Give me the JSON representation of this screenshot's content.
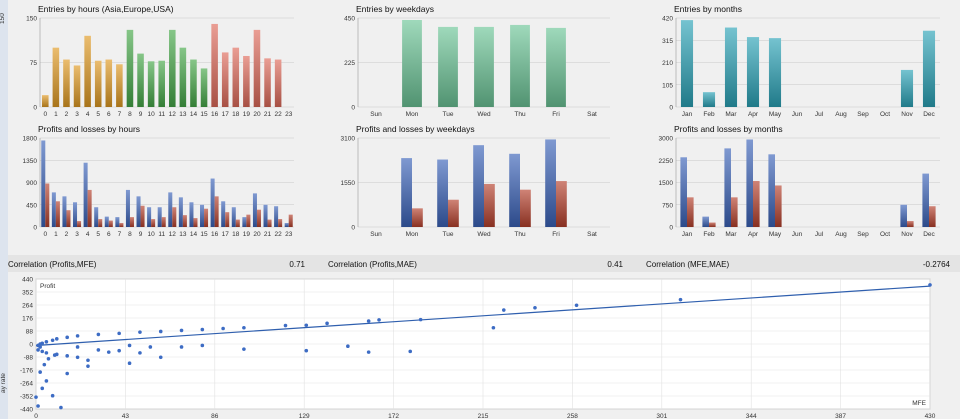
{
  "left_strip": {
    "top_text": "150",
    "side_text": "ay rate"
  },
  "charts": [
    {
      "id": "entries-hours",
      "title": "Entries by hours (Asia,Europe,USA)",
      "type": "bar",
      "categories": [
        "0",
        "1",
        "2",
        "3",
        "4",
        "5",
        "6",
        "7",
        "8",
        "9",
        "10",
        "11",
        "12",
        "13",
        "14",
        "15",
        "16",
        "17",
        "18",
        "19",
        "20",
        "21",
        "22",
        "23"
      ],
      "values": [
        20,
        100,
        80,
        70,
        120,
        78,
        80,
        72,
        130,
        90,
        77,
        78,
        130,
        100,
        80,
        65,
        140,
        92,
        100,
        86,
        130,
        82,
        80,
        null
      ],
      "colors": [
        "#e09a22",
        "#e09a22",
        "#e09a22",
        "#e09a22",
        "#e09a22",
        "#e09a22",
        "#e09a22",
        "#e09a22",
        "#45a848",
        "#45a848",
        "#45a848",
        "#45a848",
        "#45a848",
        "#45a848",
        "#45a848",
        "#45a848",
        "#de6a5a",
        "#de6a5a",
        "#de6a5a",
        "#de6a5a",
        "#de6a5a",
        "#de6a5a",
        "#de6a5a",
        "#de6a5a"
      ],
      "yticks": [
        "0",
        "75",
        "150"
      ],
      "ylim": [
        0,
        150
      ]
    },
    {
      "id": "entries-weekdays",
      "title": "Entries by weekdays",
      "type": "bar",
      "categories": [
        "Sun",
        "Mon",
        "Tue",
        "Wed",
        "Thu",
        "Fri",
        "Sat"
      ],
      "values": [
        null,
        440,
        405,
        405,
        415,
        400,
        null
      ],
      "colors": [
        "#6cc496"
      ],
      "yticks": [
        "0",
        "225",
        "450"
      ],
      "ylim": [
        0,
        450
      ]
    },
    {
      "id": "entries-months",
      "title": "Entries by months",
      "type": "bar",
      "categories": [
        "Jan",
        "Feb",
        "Mar",
        "Apr",
        "May",
        "Jun",
        "Jul",
        "Aug",
        "Sep",
        "Oct",
        "Nov",
        "Dec"
      ],
      "values": [
        410,
        70,
        375,
        330,
        325,
        null,
        null,
        null,
        null,
        null,
        175,
        360
      ],
      "colors": [
        "#2aa3b6"
      ],
      "yticks": [
        "0",
        "105",
        "210",
        "315",
        "420"
      ],
      "ylim": [
        0,
        420
      ]
    },
    {
      "id": "pl-hours",
      "title": "Profits and losses by hours",
      "type": "bar2",
      "categories": [
        "0",
        "1",
        "2",
        "3",
        "4",
        "5",
        "6",
        "7",
        "8",
        "9",
        "10",
        "11",
        "12",
        "13",
        "14",
        "15",
        "16",
        "17",
        "18",
        "19",
        "20",
        "21",
        "22",
        "23"
      ],
      "series": [
        {
          "values": [
            1750,
            700,
            620,
            500,
            1300,
            400,
            210,
            200,
            750,
            620,
            400,
            400,
            700,
            600,
            500,
            450,
            980,
            520,
            400,
            200,
            680,
            450,
            420,
            80
          ],
          "color": "#3a62b8"
        },
        {
          "values": [
            880,
            520,
            340,
            120,
            750,
            160,
            130,
            80,
            200,
            430,
            160,
            200,
            400,
            240,
            180,
            370,
            620,
            300,
            150,
            250,
            350,
            150,
            160,
            250
          ],
          "color": "#b5402c"
        }
      ],
      "yticks": [
        "0",
        "450",
        "900",
        "1350",
        "1800"
      ],
      "ylim": [
        0,
        1800
      ]
    },
    {
      "id": "pl-weekdays",
      "title": "Profits and losses by weekdays",
      "type": "bar2",
      "categories": [
        "Sun",
        "Mon",
        "Tue",
        "Wed",
        "Thu",
        "Fri",
        "Sat"
      ],
      "series": [
        {
          "values": [
            null,
            2400,
            2350,
            2850,
            2550,
            3050,
            null
          ],
          "color": "#3a62b8"
        },
        {
          "values": [
            null,
            650,
            950,
            1500,
            1300,
            1600,
            null
          ],
          "color": "#b5402c"
        }
      ],
      "yticks": [
        "0",
        "1550",
        "3100"
      ],
      "ylim": [
        0,
        3100
      ]
    },
    {
      "id": "pl-months",
      "title": "Profits and losses by months",
      "type": "bar2",
      "categories": [
        "Jan",
        "Feb",
        "Mar",
        "Apr",
        "May",
        "Jun",
        "Jul",
        "Aug",
        "Sep",
        "Oct",
        "Nov",
        "Dec"
      ],
      "series": [
        {
          "values": [
            2350,
            350,
            2650,
            2950,
            2450,
            null,
            null,
            null,
            null,
            null,
            750,
            1800
          ],
          "color": "#3a62b8"
        },
        {
          "values": [
            1000,
            150,
            1000,
            1550,
            1400,
            null,
            null,
            null,
            null,
            null,
            200,
            700
          ],
          "color": "#b5402c"
        }
      ],
      "yticks": [
        "0",
        "750",
        "1500",
        "2250",
        "3000"
      ],
      "ylim": [
        0,
        3000
      ]
    }
  ],
  "correlations": [
    {
      "label": "Correlation (Profits,MFE)",
      "value": "0.71"
    },
    {
      "label": "Correlation (Profits,MAE)",
      "value": "0.41"
    },
    {
      "label": "Correlation (MFE,MAE)",
      "value": "-0.2764"
    }
  ],
  "chart_data": {
    "type": "scatter",
    "ylabel": "Profit",
    "xlabel": "MFE",
    "xlim": [
      0,
      430
    ],
    "ylim": [
      -440,
      440
    ],
    "yticks": [
      "440",
      "352",
      "264",
      "176",
      "88",
      "0",
      "-88",
      "-176",
      "-264",
      "-352",
      "-440"
    ],
    "xticks": [
      "0",
      "43",
      "86",
      "129",
      "172",
      "215",
      "258",
      "301",
      "344",
      "387",
      "430"
    ],
    "trendline": [
      [
        0,
        -10
      ],
      [
        430,
        392
      ]
    ],
    "points": [
      [
        430,
        400
      ],
      [
        310,
        300
      ],
      [
        260,
        262
      ],
      [
        240,
        245
      ],
      [
        225,
        230
      ],
      [
        185,
        165
      ],
      [
        165,
        163
      ],
      [
        160,
        155
      ],
      [
        140,
        140
      ],
      [
        130,
        127
      ],
      [
        120,
        125
      ],
      [
        100,
        110
      ],
      [
        90,
        105
      ],
      [
        80,
        98
      ],
      [
        70,
        92
      ],
      [
        60,
        85
      ],
      [
        50,
        80
      ],
      [
        40,
        72
      ],
      [
        30,
        65
      ],
      [
        20,
        55
      ],
      [
        15,
        45
      ],
      [
        10,
        35
      ],
      [
        8,
        25
      ],
      [
        5,
        15
      ],
      [
        3,
        5
      ],
      [
        2,
        0
      ],
      [
        1,
        -10
      ],
      [
        2,
        -20
      ],
      [
        1,
        -40
      ],
      [
        3,
        -50
      ],
      [
        5,
        -60
      ],
      [
        10,
        -70
      ],
      [
        15,
        -80
      ],
      [
        20,
        -90
      ],
      [
        25,
        -110
      ],
      [
        30,
        -40
      ],
      [
        35,
        -55
      ],
      [
        45,
        -130
      ],
      [
        25,
        -150
      ],
      [
        15,
        -200
      ],
      [
        5,
        -250
      ],
      [
        3,
        -300
      ],
      [
        8,
        -350
      ],
      [
        12,
        -430
      ],
      [
        1,
        -420
      ],
      [
        0,
        -360
      ],
      [
        2,
        -190
      ],
      [
        4,
        -140
      ],
      [
        6,
        -100
      ],
      [
        9,
        -75
      ],
      [
        20,
        -20
      ],
      [
        40,
        -45
      ],
      [
        50,
        -60
      ],
      [
        60,
        -90
      ],
      [
        45,
        -10
      ],
      [
        55,
        -20
      ],
      [
        70,
        -20
      ],
      [
        80,
        -10
      ],
      [
        100,
        -35
      ],
      [
        150,
        -15
      ],
      [
        160,
        -55
      ],
      [
        180,
        -50
      ],
      [
        220,
        110
      ],
      [
        130,
        -45
      ]
    ]
  }
}
